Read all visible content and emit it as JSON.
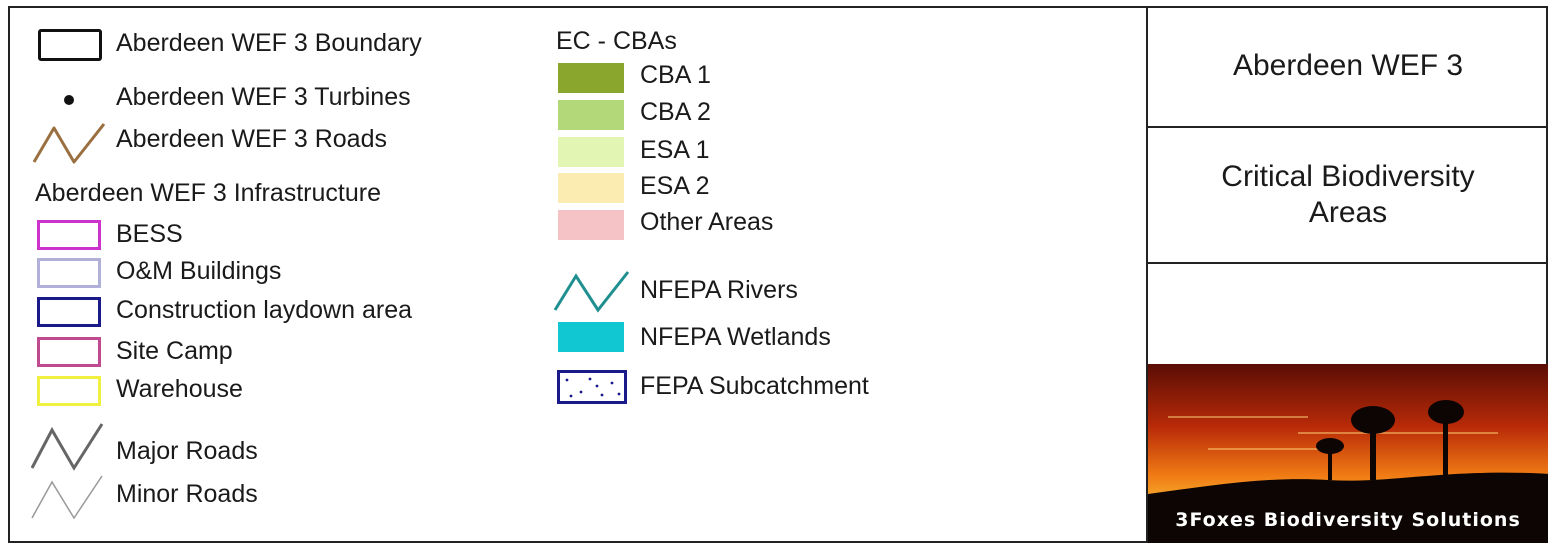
{
  "legend": {
    "boundary": "Aberdeen WEF 3 Boundary",
    "turbines": "Aberdeen WEF 3 Turbines",
    "roads": "Aberdeen WEF 3 Roads",
    "infra_heading": "Aberdeen WEF 3 Infrastructure",
    "infrastructure": [
      {
        "label": "BESS",
        "color": "#cc33cc"
      },
      {
        "label": "O&M Buildings",
        "color": "#b0b0d8"
      },
      {
        "label": "Construction laydown area",
        "color": "#1a1a8c"
      },
      {
        "label": "Site Camp",
        "color": "#c04a90"
      },
      {
        "label": "Warehouse",
        "color": "#f0f040"
      }
    ],
    "major_roads": "Major Roads",
    "minor_roads": "Minor Roads",
    "cba_heading": "EC - CBAs",
    "cba": [
      {
        "label": "CBA 1",
        "color": "#8aa62c"
      },
      {
        "label": "CBA 2",
        "color": "#b2d87a"
      },
      {
        "label": "ESA 1",
        "color": "#e3f5b2"
      },
      {
        "label": "ESA 2",
        "color": "#fbedb2"
      },
      {
        "label": "Other Areas",
        "color": "#f5c3c6"
      }
    ],
    "rivers": "NFEPA Rivers",
    "wetlands": "NFEPA Wetlands",
    "subcatchment": "FEPA Subcatchment",
    "colors": {
      "roads": "#9a7040",
      "rivers": "#1f8f8f",
      "wetlands": "#11c8d2",
      "subcatchment": "#1a1a8c",
      "major_roads": "#666666",
      "minor_roads": "#999999"
    }
  },
  "title_block": {
    "project": "Aberdeen WEF 3",
    "map_title": "Critical Biodiversity Areas",
    "logo_text": "3Foxes Biodiversity Solutions"
  }
}
